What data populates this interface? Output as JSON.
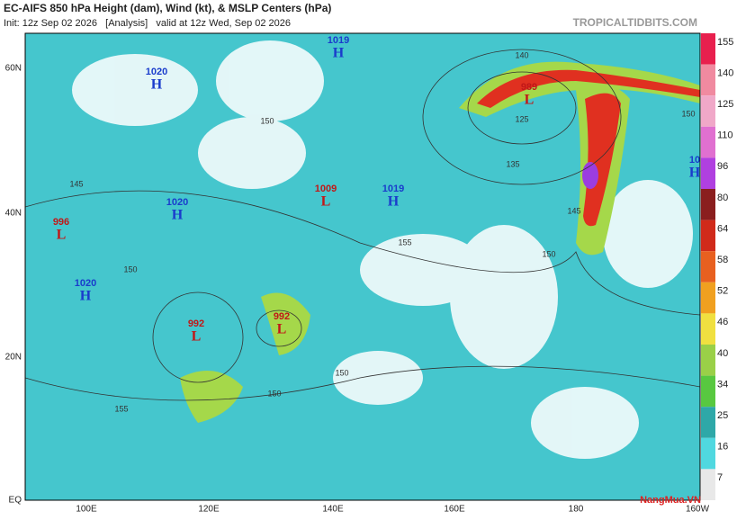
{
  "header": {
    "title": "EC-AIFS 850 hPa Height (dam), Wind (kt), & MSLP Centers (hPa)",
    "subtitle": "Init: 12z Sep 02 2026   [Analysis]   valid at 12z Wed, Sep 02 2026",
    "site": "TROPICALTIDBITS.COM"
  },
  "map": {
    "latitude_labels": [
      "60N",
      "40N",
      "20N",
      "EQ"
    ],
    "longitude_labels": [
      "100E",
      "120E",
      "140E",
      "160E",
      "180",
      "160W"
    ],
    "centers": [
      {
        "pressure": 1019,
        "symbol": "H"
      },
      {
        "pressure": 1020,
        "symbol": "H"
      },
      {
        "pressure": 1020,
        "symbol": "H"
      },
      {
        "pressure": 1020,
        "symbol": "H"
      },
      {
        "pressure": 1019,
        "symbol": "H"
      },
      {
        "pressure": 1009,
        "symbol": "L"
      },
      {
        "pressure": 996,
        "symbol": "L"
      },
      {
        "pressure": 992,
        "symbol": "L"
      },
      {
        "pressure": 992,
        "symbol": "L"
      },
      {
        "pressure": 989,
        "symbol": "L"
      },
      {
        "pressure": 10,
        "symbol": "H"
      }
    ],
    "contour_labels": [
      "150",
      "145",
      "155",
      "150",
      "135",
      "125",
      "140",
      "145",
      "150",
      "150",
      "150",
      "155",
      "150"
    ]
  },
  "colorbar": {
    "ticks": [
      155,
      140,
      125,
      110,
      96,
      80,
      64,
      58,
      52,
      46,
      40,
      34,
      25,
      16,
      7
    ]
  },
  "watermark": "NangMua.VN"
}
